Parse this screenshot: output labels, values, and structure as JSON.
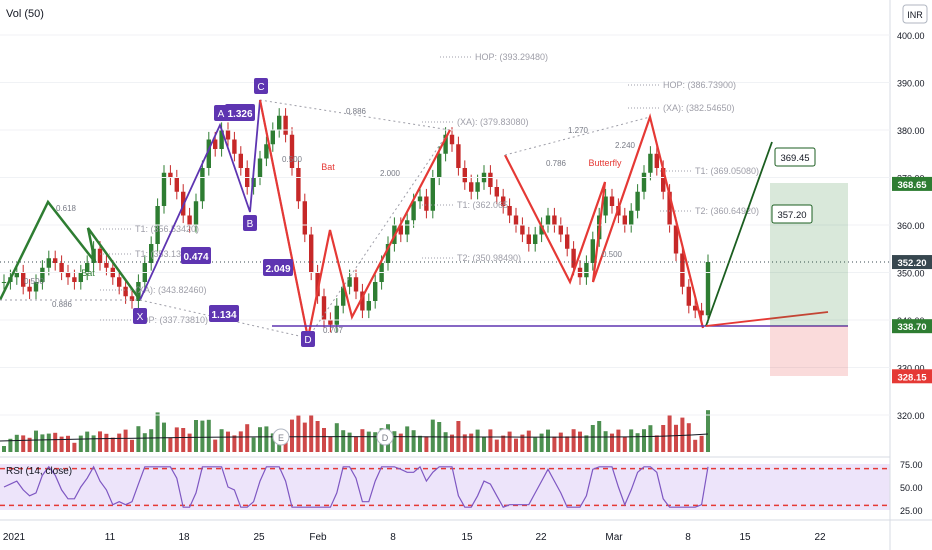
{
  "header": {
    "indicator": "Vol (50)",
    "currency": "INR"
  },
  "rsi": {
    "label": "RSI (14, close)",
    "levels": [
      75,
      50,
      25
    ],
    "overbought": 70,
    "oversold": 30
  },
  "chart_data": {
    "type": "candlestick",
    "ylim": [
      308,
      405
    ],
    "y_ticks": [
      400,
      390,
      380,
      370,
      360,
      350,
      340,
      330,
      320
    ],
    "x_ticks": [
      "2021",
      "11",
      "18",
      "25",
      "Feb",
      "8",
      "15",
      "22",
      "Mar",
      "8",
      "15",
      "22"
    ],
    "last_price": "352.20",
    "price_tags": [
      {
        "text": "368.65",
        "value": 368.65,
        "color": "#2e7d32"
      },
      {
        "text": "352.20",
        "value": 352.2,
        "color": "#37474f"
      },
      {
        "text": "338.70",
        "value": 338.7,
        "color": "#2e7d32"
      },
      {
        "text": "328.15",
        "value": 328.15,
        "color": "#e53935"
      }
    ],
    "pattern_points": [
      {
        "text": "A",
        "value": 382
      },
      {
        "text": "C",
        "value": 386
      },
      {
        "text": "B",
        "value": 361
      },
      {
        "text": "X",
        "value": 341
      },
      {
        "text": "D",
        "value": 338
      }
    ],
    "ratio_boxes": [
      "1.326",
      "0.474",
      "2.049",
      "1.134"
    ],
    "callouts": [
      "369.45",
      "357.20"
    ],
    "pattern_names": [
      "Bat",
      "Bat",
      "Butterfly"
    ],
    "ratio_labels": [
      "0.618",
      "0.500",
      "0.886",
      "0.886",
      "0.500",
      "2.000",
      "0.707",
      "1.270",
      "0.786",
      "2.240",
      "0.500"
    ],
    "levels": [
      {
        "text": "HOP: (393.29480)",
        "value": 393.2948
      },
      {
        "text": "HOP: (386.73900)",
        "value": 386.739
      },
      {
        "text": "(XA): (382.54650)",
        "value": 382.5465
      },
      {
        "text": "(XA): (379.83080)",
        "value": 379.8308
      },
      {
        "text": "T1: (369.05080)",
        "value": 369.0508
      },
      {
        "text": "T1: (362.065",
        "value": 362.065
      },
      {
        "text": "T2: (360.64920)",
        "value": 360.6492
      },
      {
        "text": "T2: (350.98490)",
        "value": 350.9849
      },
      {
        "text": "(XA): (343.82460)",
        "value": 343.8246
      },
      {
        "text": "HOP: (337.73810)",
        "value": 337.7381
      },
      {
        "text": "T1: (356.53420)",
        "value": 356.5342
      },
      {
        "text": "T1: (353.13380)",
        "value": 353.1338
      }
    ],
    "event_markers": [
      "E",
      "D"
    ],
    "series": [
      {
        "name": "close",
        "values": [
          348,
          349,
          350,
          347,
          346,
          348,
          351,
          353,
          352,
          350,
          349,
          348,
          350,
          352,
          355,
          352,
          351,
          349,
          347,
          345,
          344,
          348,
          352,
          356,
          364,
          371,
          370,
          367,
          362,
          360,
          365,
          372,
          378,
          376,
          380,
          378,
          375,
          372,
          368,
          370,
          374,
          377,
          380,
          383,
          379,
          372,
          365,
          358,
          350,
          345,
          340,
          339,
          343,
          347,
          349,
          346,
          342,
          344,
          348,
          352,
          356,
          360,
          358,
          361,
          365,
          366,
          363,
          370,
          375,
          379,
          377,
          372,
          369,
          367,
          369,
          371,
          368,
          366,
          364,
          362,
          360,
          358,
          356,
          358,
          360,
          362,
          360,
          358,
          355,
          351,
          349,
          352,
          357,
          362,
          366,
          364,
          362,
          360,
          363,
          367,
          371,
          375,
          372,
          367,
          360,
          354,
          347,
          343,
          342,
          341,
          352.2
        ]
      }
    ]
  }
}
